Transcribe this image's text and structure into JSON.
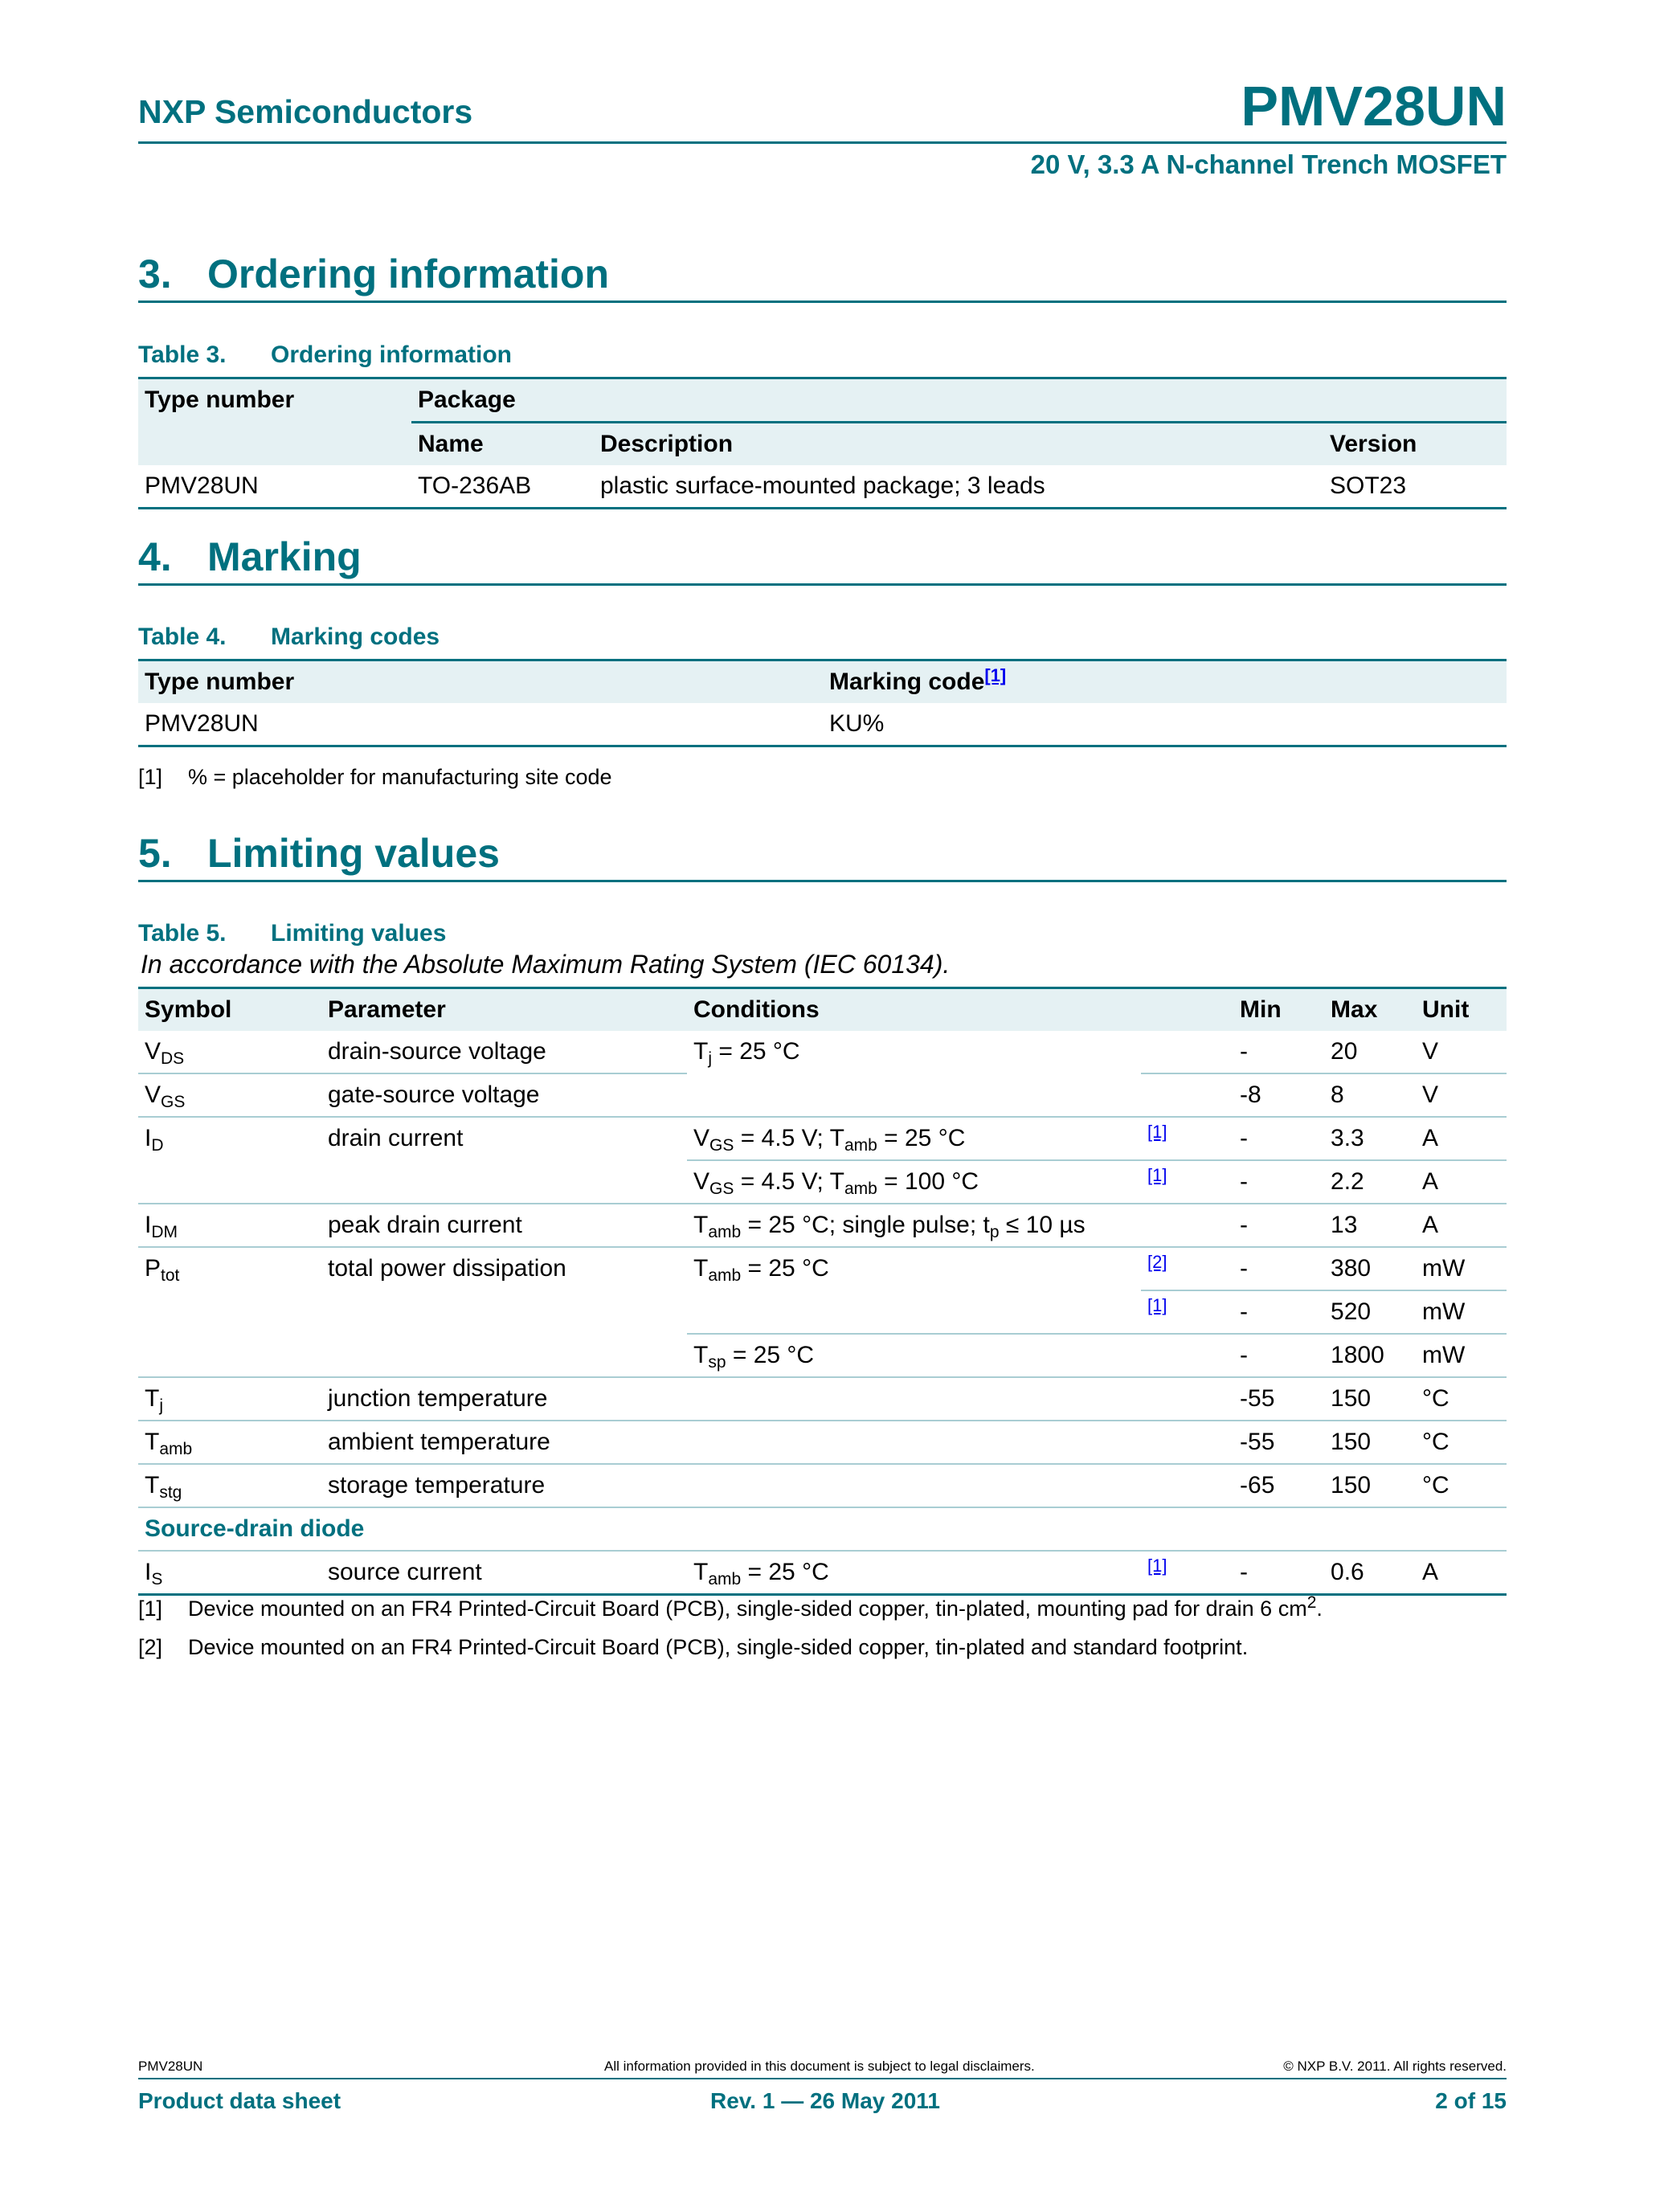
{
  "header": {
    "company": "NXP Semiconductors",
    "part": "PMV28UN",
    "subtitle": "20 V, 3.3 A N-channel Trench MOSFET"
  },
  "colors": {
    "accent": "#00707f",
    "header_fill": "#e5f1f3",
    "row_rule": "#a9cdd3",
    "link": "#0000ee"
  },
  "sections": [
    {
      "num": "3.",
      "title": "Ordering information"
    },
    {
      "num": "4.",
      "title": "Marking"
    },
    {
      "num": "5.",
      "title": "Limiting values"
    }
  ],
  "table3": {
    "caption_num": "Table 3.",
    "caption": "Ordering information",
    "h_type": "Type number",
    "h_package": "Package",
    "h_name": "Name",
    "h_desc": "Description",
    "h_version": "Version",
    "rows": [
      {
        "type": "PMV28UN",
        "name": "TO-236AB",
        "desc": "plastic surface-mounted package; 3 leads",
        "version": "SOT23"
      }
    ]
  },
  "table4": {
    "caption_num": "Table 4.",
    "caption": "Marking codes",
    "h_type": "Type number",
    "h_code": "Marking code",
    "h_code_ref": "[1]",
    "rows": [
      {
        "type": "PMV28UN",
        "code": "KU%"
      }
    ],
    "footnotes": [
      {
        "num": "[1]",
        "text": "% = placeholder for manufacturing site code"
      }
    ]
  },
  "table5": {
    "caption_num": "Table 5.",
    "caption": "Limiting values",
    "note": "In accordance with the Absolute Maximum Rating System (IEC 60134).",
    "headers": {
      "symbol": "Symbol",
      "parameter": "Parameter",
      "conditions": "Conditions",
      "min": "Min",
      "max": "Max",
      "unit": "Unit"
    },
    "rows": [
      {
        "sym": "V",
        "sub": "DS",
        "param": "drain-source voltage",
        "cond": [
          [
            "T"
          ],
          [
            "_",
            "j"
          ],
          [
            " = 25 °C"
          ]
        ],
        "ref": "",
        "min": "-",
        "max": "20",
        "unit": "V"
      },
      {
        "sym": "V",
        "sub": "GS",
        "param": "gate-source voltage",
        "ref": "",
        "min": "-8",
        "max": "8",
        "unit": "V"
      },
      {
        "sym": "I",
        "sub": "D",
        "param": "drain current",
        "cond": [
          [
            "V"
          ],
          [
            "_",
            "GS"
          ],
          [
            " = 4.5 V; T"
          ],
          [
            "_",
            "amb"
          ],
          [
            " = 25 °C"
          ]
        ],
        "ref": "[1]",
        "min": "-",
        "max": "3.3",
        "unit": "A"
      },
      {
        "cond": [
          [
            "V"
          ],
          [
            "_",
            "GS"
          ],
          [
            " = 4.5 V; T"
          ],
          [
            "_",
            "amb"
          ],
          [
            " = 100 °C"
          ]
        ],
        "ref": "[1]",
        "min": "-",
        "max": "2.2",
        "unit": "A"
      },
      {
        "sym": "I",
        "sub": "DM",
        "param": "peak drain current",
        "cond": [
          [
            "T"
          ],
          [
            "_",
            "amb"
          ],
          [
            " = 25 °C; single pulse; t"
          ],
          [
            "_",
            "p"
          ],
          [
            " ≤ 10 µs"
          ]
        ],
        "ref": "",
        "min": "-",
        "max": "13",
        "unit": "A"
      },
      {
        "sym": "P",
        "sub": "tot",
        "param": "total power dissipation",
        "cond": [
          [
            "T"
          ],
          [
            "_",
            "amb"
          ],
          [
            " = 25 °C"
          ]
        ],
        "ref": "[2]",
        "min": "-",
        "max": "380",
        "unit": "mW"
      },
      {
        "ref": "[1]",
        "min": "-",
        "max": "520",
        "unit": "mW"
      },
      {
        "cond": [
          [
            "T"
          ],
          [
            "_",
            "sp"
          ],
          [
            " = 25 °C"
          ]
        ],
        "ref": "",
        "min": "-",
        "max": "1800",
        "unit": "mW"
      },
      {
        "sym": "T",
        "sub": "j",
        "param": "junction temperature",
        "cond": [],
        "ref": "",
        "min": "-55",
        "max": "150",
        "unit": "°C"
      },
      {
        "sym": "T",
        "sub": "amb",
        "param": "ambient temperature",
        "cond": [],
        "ref": "",
        "min": "-55",
        "max": "150",
        "unit": "°C"
      },
      {
        "sym": "T",
        "sub": "stg",
        "param": "storage temperature",
        "cond": [],
        "ref": "",
        "min": "-65",
        "max": "150",
        "unit": "°C"
      },
      {
        "group": "Source-drain diode"
      },
      {
        "sym": "I",
        "sub": "S",
        "param": "source current",
        "cond": [
          [
            "T"
          ],
          [
            "_",
            "amb"
          ],
          [
            " = 25 °C"
          ]
        ],
        "ref": "[1]",
        "min": "-",
        "max": "0.6",
        "unit": "A"
      }
    ],
    "footnotes": [
      {
        "num": "[1]",
        "text": "Device mounted on an FR4 Printed-Circuit Board (PCB), single-sided copper, tin-plated, mounting pad for drain 6 cm",
        "sup": "2",
        "tail": "."
      },
      {
        "num": "[2]",
        "text": "Device mounted on an FR4 Printed-Circuit Board (PCB), single-sided copper, tin-plated and standard footprint."
      }
    ]
  },
  "footer": {
    "left_small": "PMV28UN",
    "center_small": "All information provided in this document is subject to legal disclaimers.",
    "right_small": "© NXP B.V. 2011. All rights reserved.",
    "left": "Product data sheet",
    "center": "Rev. 1 — 26 May 2011",
    "right": "2 of 15"
  }
}
